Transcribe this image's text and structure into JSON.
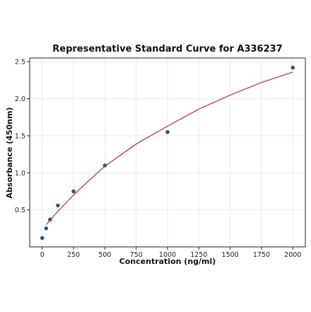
{
  "chart_data": {
    "type": "scatter",
    "title": "Representative Standard Curve for A336237",
    "xlabel": "Concentration (ng/ml)",
    "ylabel": "Absorbance (450nm)",
    "xlim": [
      -100,
      2100
    ],
    "ylim": [
      0,
      2.55
    ],
    "xticks": [
      0,
      250,
      500,
      750,
      1000,
      1250,
      1500,
      1750,
      2000
    ],
    "yticks": [
      0.5,
      1.0,
      1.5,
      2.0,
      2.5
    ],
    "xtick_labels": [
      "0",
      "250",
      "500",
      "750",
      "1000",
      "1250",
      "1500",
      "1750",
      "2000"
    ],
    "ytick_labels": [
      "0.5",
      "1.0",
      "1.5",
      "2.0",
      "2.5"
    ],
    "grid": true,
    "series": [
      {
        "kind": "points",
        "x": [
          0,
          31.25,
          62.5,
          125,
          250,
          500,
          1000,
          2000
        ],
        "y": [
          0.12,
          0.25,
          0.37,
          0.56,
          0.75,
          1.1,
          1.55,
          2.42
        ],
        "color": "#2f5b7c"
      },
      {
        "kind": "fitted-curve",
        "x": [
          31.25,
          62.5,
          125,
          250,
          375,
          500,
          750,
          1000,
          1250,
          1500,
          1750,
          2000
        ],
        "y": [
          0.3,
          0.36,
          0.48,
          0.7,
          0.9,
          1.09,
          1.39,
          1.63,
          1.86,
          2.05,
          2.22,
          2.36
        ],
        "color": "#b8475c"
      }
    ]
  }
}
